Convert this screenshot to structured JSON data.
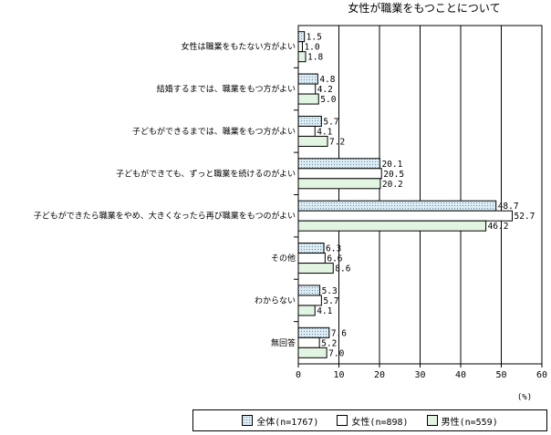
{
  "chart_data": {
    "type": "bar",
    "orientation": "horizontal",
    "title": "女性が職業をもつことについて",
    "xunit": "(%)",
    "xlim": [
      0,
      60
    ],
    "xticks": [
      0,
      10,
      20,
      30,
      40,
      50,
      60
    ],
    "grid": true,
    "legend_position": "bottom",
    "categories": [
      "女性は職業をもたない方がよい",
      "結婚するまでは、職業をもつ方がよい",
      "子どもができるまでは、職業をもつ方がよい",
      "子どもができても、ずっと職業を続けるのがよい",
      "子どもができたら職業をやめ、大きくなったら再び職業をもつのがよい",
      "その他",
      "わからない",
      "無回答"
    ],
    "series": [
      {
        "name": "全体(n=1767)",
        "values": [
          1.5,
          4.8,
          5.7,
          20.1,
          48.7,
          6.3,
          5.3,
          7.6
        ],
        "color": "#dcecf4",
        "pattern": "dots"
      },
      {
        "name": "女性(n=898)",
        "values": [
          1.0,
          4.2,
          4.1,
          20.5,
          52.7,
          6.6,
          5.7,
          5.2
        ],
        "color": "#ffffff",
        "pattern": "none"
      },
      {
        "name": "男性(n=559)",
        "values": [
          1.8,
          5.0,
          7.2,
          20.2,
          46.2,
          8.6,
          4.1,
          7.0
        ],
        "color": "#e2f4e2",
        "pattern": "none"
      }
    ]
  }
}
